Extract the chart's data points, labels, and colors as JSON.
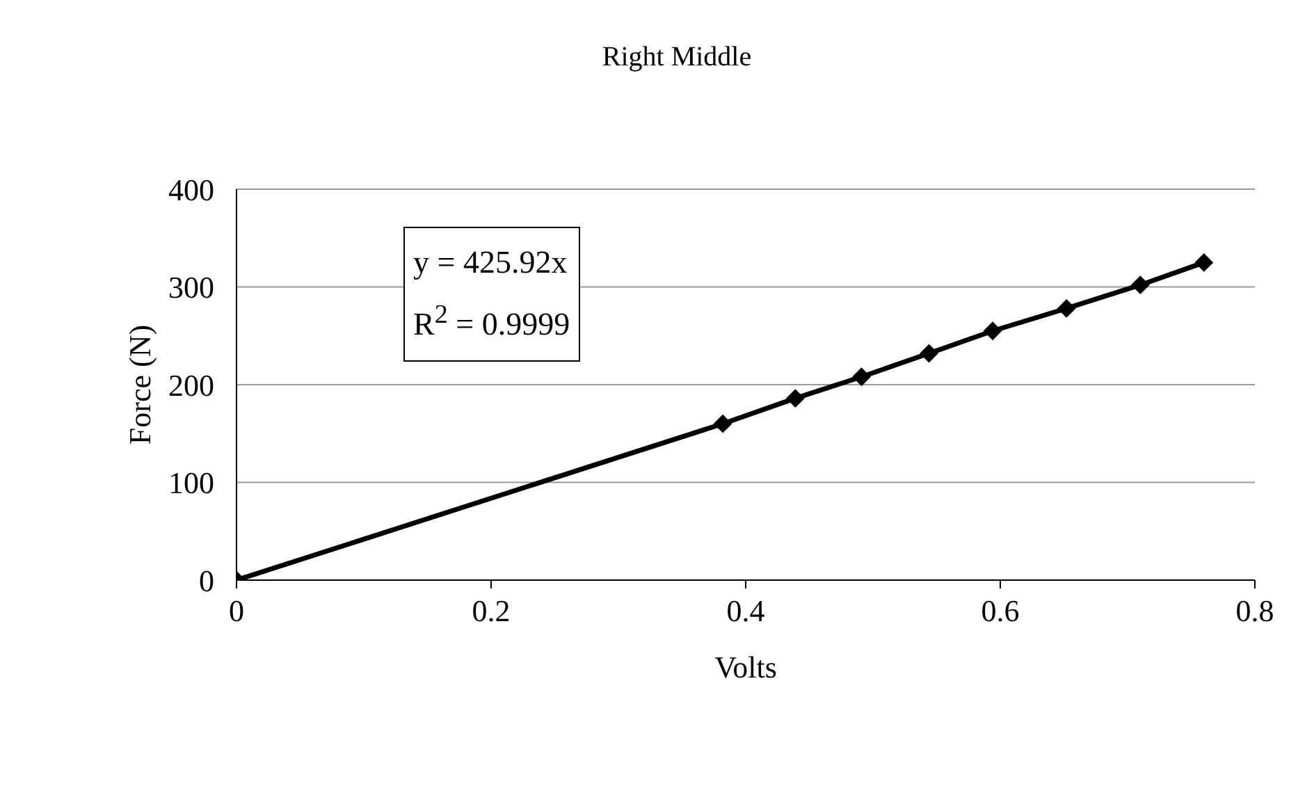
{
  "chart_data": {
    "type": "line",
    "title": "Right Middle",
    "xlabel": "Volts",
    "ylabel": "Force (N)",
    "x": [
      0,
      0.382,
      0.439,
      0.491,
      0.544,
      0.594,
      0.652,
      0.71,
      0.76
    ],
    "series": [
      {
        "color": "#000000",
        "values": [
          0,
          160,
          186,
          208,
          232,
          255,
          278,
          302,
          325
        ]
      }
    ],
    "xlim": [
      0,
      0.8
    ],
    "xticks": [
      0,
      0.2,
      0.4,
      0.6,
      0.8
    ],
    "ylim": [
      0,
      400
    ],
    "yticks": [
      0,
      100,
      200,
      300,
      400
    ],
    "grid": "y",
    "marker": "diamond",
    "line_style": "solid",
    "annotations": [
      "y = 425.92x",
      "R$^{2}$ = 0.9999"
    ]
  }
}
